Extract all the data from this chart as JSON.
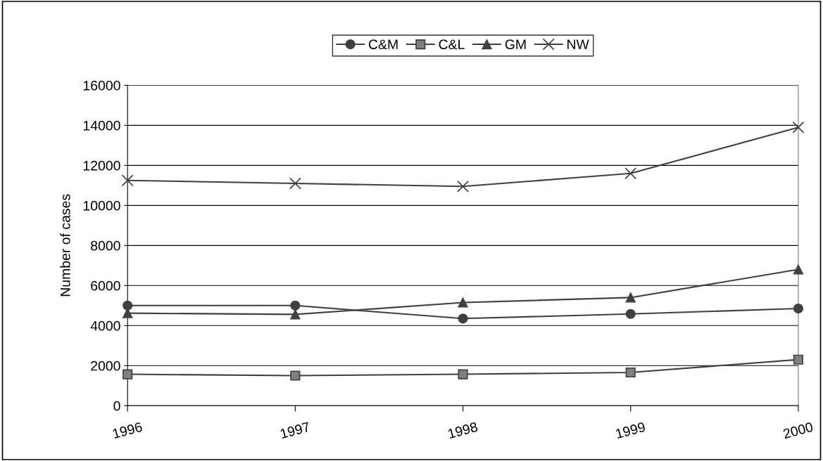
{
  "chart_data": {
    "type": "line",
    "ylabel": "Number of cases",
    "categories": [
      "1996",
      "1997",
      "1998",
      "1999",
      "2000"
    ],
    "series": [
      {
        "name": "C&M",
        "color": "#404040",
        "marker": "circle",
        "values": [
          5000,
          5000,
          4350,
          4580,
          4850
        ]
      },
      {
        "name": "C&L",
        "color": "#404040",
        "marker": "square",
        "values": [
          1570,
          1500,
          1570,
          1660,
          2300
        ]
      },
      {
        "name": "GM",
        "color": "#404040",
        "marker": "triangle",
        "values": [
          4620,
          4560,
          5150,
          5400,
          6800
        ]
      },
      {
        "name": "NW",
        "color": "#404040",
        "marker": "cross",
        "values": [
          11250,
          11100,
          10950,
          11600,
          13900
        ]
      }
    ],
    "ylim": [
      0,
      16000
    ],
    "yticks": [
      0,
      2000,
      4000,
      6000,
      8000,
      10000,
      12000,
      14000,
      16000
    ],
    "grid": "y",
    "legend": "top",
    "line_style": "solid"
  }
}
